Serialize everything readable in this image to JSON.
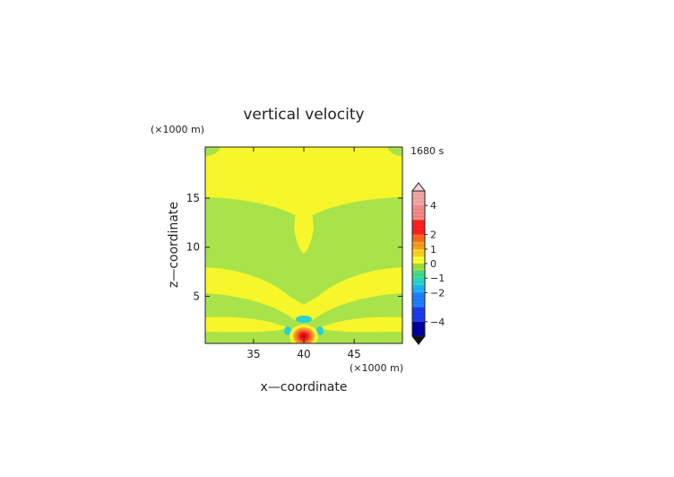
{
  "chart_data": {
    "type": "heatmap",
    "title": "vertical velocity",
    "time_label": "1680 s",
    "xlabel": "x—coordinate",
    "ylabel": "z—coordinate",
    "x_unit_label": "(×1000 m)",
    "y_unit_label": "(×1000 m)",
    "xlim": [
      30.2,
      49.8
    ],
    "ylim": [
      0.2,
      20.2
    ],
    "x_ticks": [
      35,
      40,
      45
    ],
    "x_tick_labels": [
      "35",
      "40",
      "45"
    ],
    "y_ticks": [
      5,
      10,
      15
    ],
    "y_tick_labels": [
      "5",
      "10",
      "15"
    ],
    "colorbar": {
      "tick_values": [
        4,
        2,
        1,
        0,
        -1,
        -2,
        -4
      ],
      "tick_labels": [
        "4",
        "2",
        "1",
        "0",
        "−1",
        "−2",
        "−4"
      ],
      "range": [
        -5,
        5
      ],
      "colors": {
        "strong_positive": "#f4a7a7",
        "positive_2": "#ff2020",
        "positive_1": "#ff9c1c",
        "near_zero_positive": "#ffff33",
        "near_zero_negative": "#9cdf3c",
        "negative_1": "#25d6c8",
        "negative_2": "#1f7fff",
        "strong_negative": "#0000a0"
      }
    },
    "field_colors": {
      "background_positive": "#f6f62a",
      "background_negative": "#a9e34a",
      "cyan_negative": "#2ad3cf",
      "updraft_core": "#ef1a1a",
      "updraft_ring": "#ff9f32"
    }
  }
}
